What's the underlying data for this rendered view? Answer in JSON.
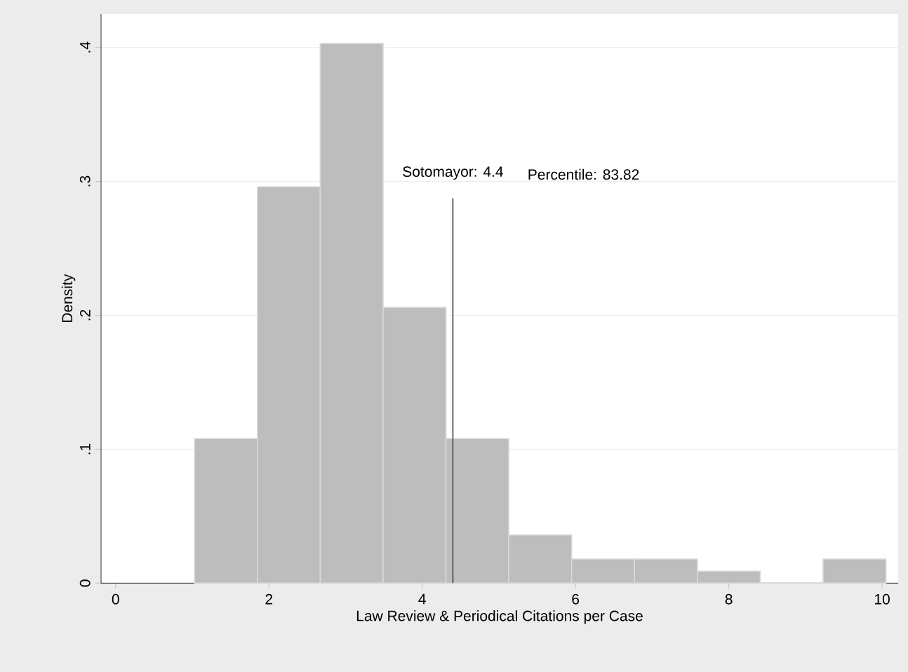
{
  "chart_data": {
    "type": "histogram",
    "xlabel": "Law Review & Periodical Citations per Case",
    "ylabel": "Density",
    "bins": [
      1.03,
      1.85,
      2.67,
      3.49,
      4.31,
      5.13,
      5.95,
      6.77,
      7.59,
      8.41,
      9.23,
      10.05
    ],
    "values": [
      0.108,
      0.296,
      0.403,
      0.206,
      0.108,
      0.036,
      0.018,
      0.018,
      0.009,
      0,
      0.018
    ],
    "color": "#bdbdbd",
    "xlim": [
      -0.19,
      10.21
    ],
    "ylim": [
      0,
      0.425
    ],
    "xticks": [
      0,
      2,
      4,
      6,
      8,
      10
    ],
    "yticks": [
      {
        "value": 0,
        "label": "0"
      },
      {
        "value": 0.1,
        "label": ".1"
      },
      {
        "value": 0.2,
        "label": ".2"
      },
      {
        "value": 0.3,
        "label": ".3"
      },
      {
        "value": 0.4,
        "label": ".4"
      }
    ],
    "grid": "y",
    "ref_lines": [
      {
        "axis": "x",
        "value": 4.4,
        "label": "Sotomayor: 4.4",
        "color": "#555555"
      }
    ],
    "annotations": [
      "Percentile: 83.82"
    ]
  }
}
